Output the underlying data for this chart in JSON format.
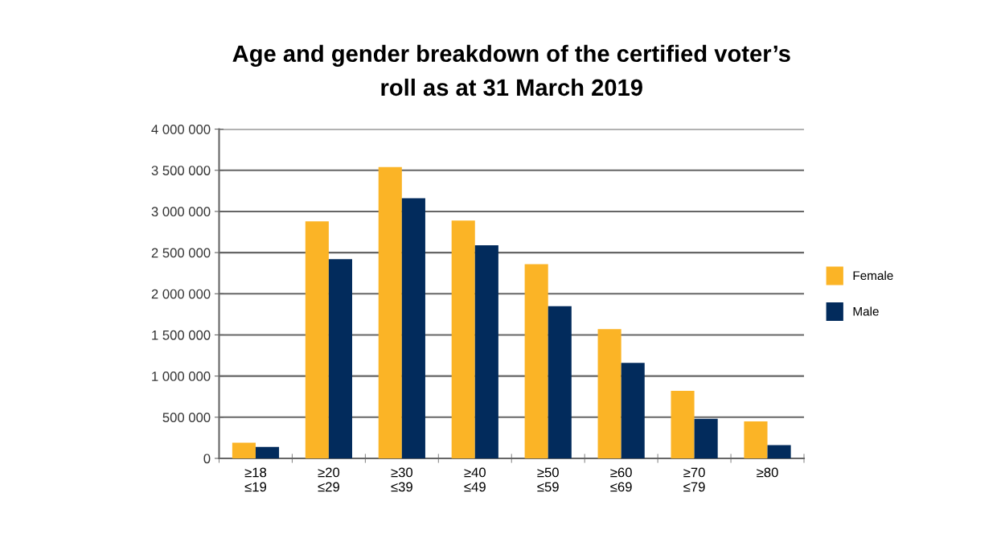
{
  "chart_data": {
    "type": "bar",
    "title": "Age and gender breakdown of the certified voter’s\nroll as at 31 March 2019",
    "categories": [
      "≥18\n≤19",
      "≥20\n≤29",
      "≥30\n≤39",
      "≥40\n≤49",
      "≥50\n≤59",
      "≥60\n≤69",
      "≥70\n≤79",
      "≥80"
    ],
    "series": [
      {
        "name": "Female",
        "color": "#fbb426",
        "values": [
          190000,
          2880000,
          3540000,
          2890000,
          2360000,
          1570000,
          820000,
          450000
        ]
      },
      {
        "name": "Male",
        "color": "#022b5c",
        "values": [
          140000,
          2420000,
          3160000,
          2590000,
          1850000,
          1160000,
          480000,
          160000
        ]
      }
    ],
    "ylim": [
      0,
      4000000
    ],
    "yticks": [
      {
        "value": 0,
        "label": "0"
      },
      {
        "value": 500000,
        "label": "500 000"
      },
      {
        "value": 1000000,
        "label": "1 000 000"
      },
      {
        "value": 1500000,
        "label": "1 500 000"
      },
      {
        "value": 2000000,
        "label": "2 000 000"
      },
      {
        "value": 2500000,
        "label": "2 500 000"
      },
      {
        "value": 3000000,
        "label": "3 000 000"
      },
      {
        "value": 3500000,
        "label": "3 500 000"
      },
      {
        "value": 4000000,
        "label": "4 000 000"
      }
    ],
    "grid": "y",
    "legend": "right"
  }
}
